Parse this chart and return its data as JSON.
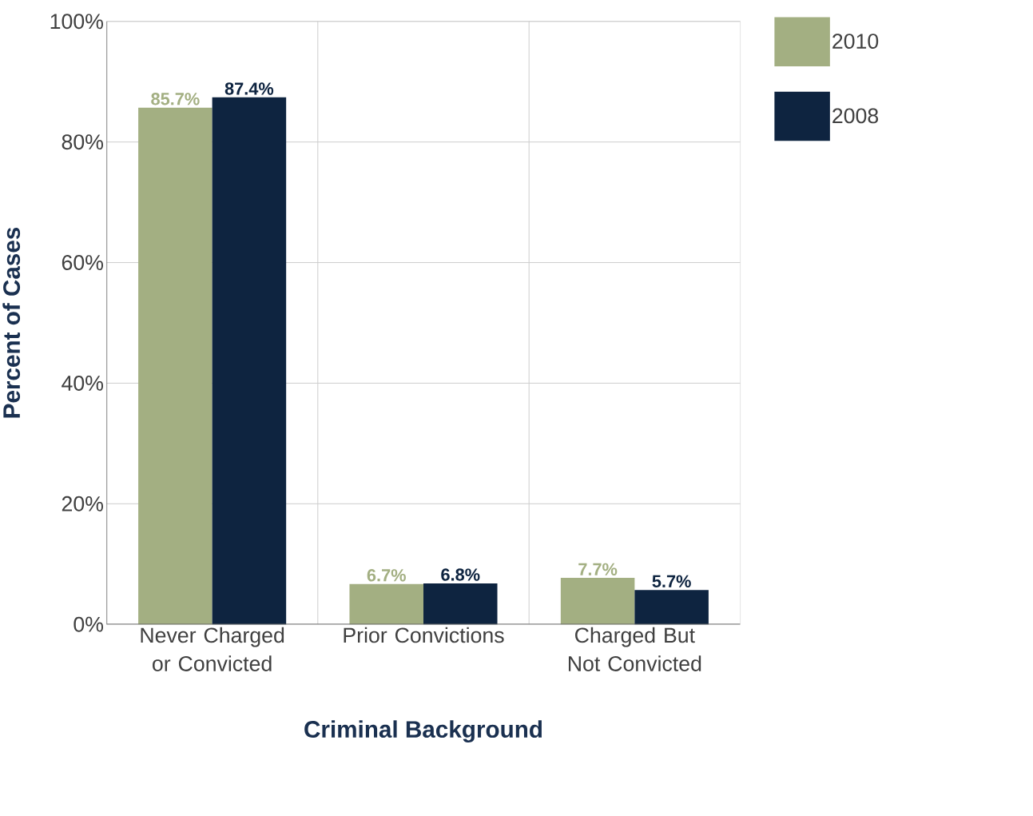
{
  "chart_data": {
    "type": "bar",
    "xlabel": "Criminal Background",
    "ylabel": "Percent of Cases",
    "categories": [
      "Never Charged or Convicted",
      "Prior Convictions",
      "Charged But Not Convicted"
    ],
    "series": [
      {
        "name": "2010",
        "color": "#a3af82",
        "values": [
          85.7,
          6.7,
          7.7
        ],
        "value_labels": [
          "85.7%",
          "6.7%",
          "7.7%"
        ]
      },
      {
        "name": "2008",
        "color": "#0e2440",
        "values": [
          87.4,
          6.8,
          5.7
        ],
        "value_labels": [
          "87.4%",
          "6.8%",
          "5.7%"
        ]
      }
    ],
    "ylim": [
      0,
      100
    ],
    "yticks": [
      {
        "value": 0,
        "label": "0%"
      },
      {
        "value": 20,
        "label": "20%"
      },
      {
        "value": 40,
        "label": "40%"
      },
      {
        "value": 60,
        "label": "60%"
      },
      {
        "value": 80,
        "label": "80%"
      },
      {
        "value": 100,
        "label": "100%"
      }
    ],
    "grid": true,
    "legend": "top right"
  }
}
